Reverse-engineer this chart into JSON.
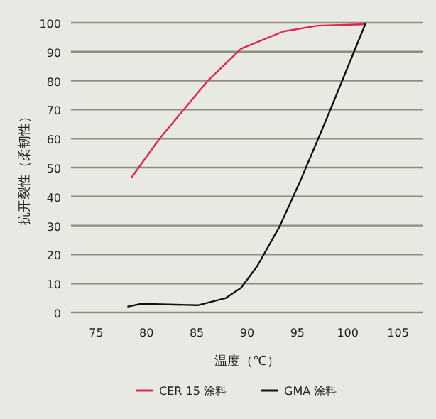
{
  "chart_data": {
    "type": "line",
    "xlabel": "温度（℃）",
    "ylabel": "抗开裂性（柔韧性）",
    "xlim": [
      72.5,
      107.5
    ],
    "xticks": [
      75,
      80,
      85,
      90,
      95,
      100,
      105
    ],
    "ylim": [
      0,
      100
    ],
    "yticks": [
      0,
      10,
      20,
      30,
      40,
      50,
      60,
      70,
      80,
      90,
      100
    ],
    "grid": "y",
    "legend": "bottom",
    "marker": "none",
    "line_style": "solid",
    "series": [
      {
        "name": "CER 15 涂料",
        "color": "#e0264f",
        "x": [
          78.5,
          81.3,
          86.1,
          89.4,
          93.6,
          97,
          101.8
        ],
        "values": [
          46.5,
          60,
          80,
          91,
          97,
          99,
          99.5
        ]
      },
      {
        "name": "GMA 涂料",
        "color": "#111111",
        "x": [
          78.1,
          79.5,
          85.1,
          87.9,
          89.4,
          91.0,
          93.2,
          95.3,
          98.1,
          101.8
        ],
        "values": [
          2,
          3,
          2.5,
          5,
          8.5,
          16,
          29.5,
          45.5,
          68.5,
          100
        ]
      }
    ]
  }
}
